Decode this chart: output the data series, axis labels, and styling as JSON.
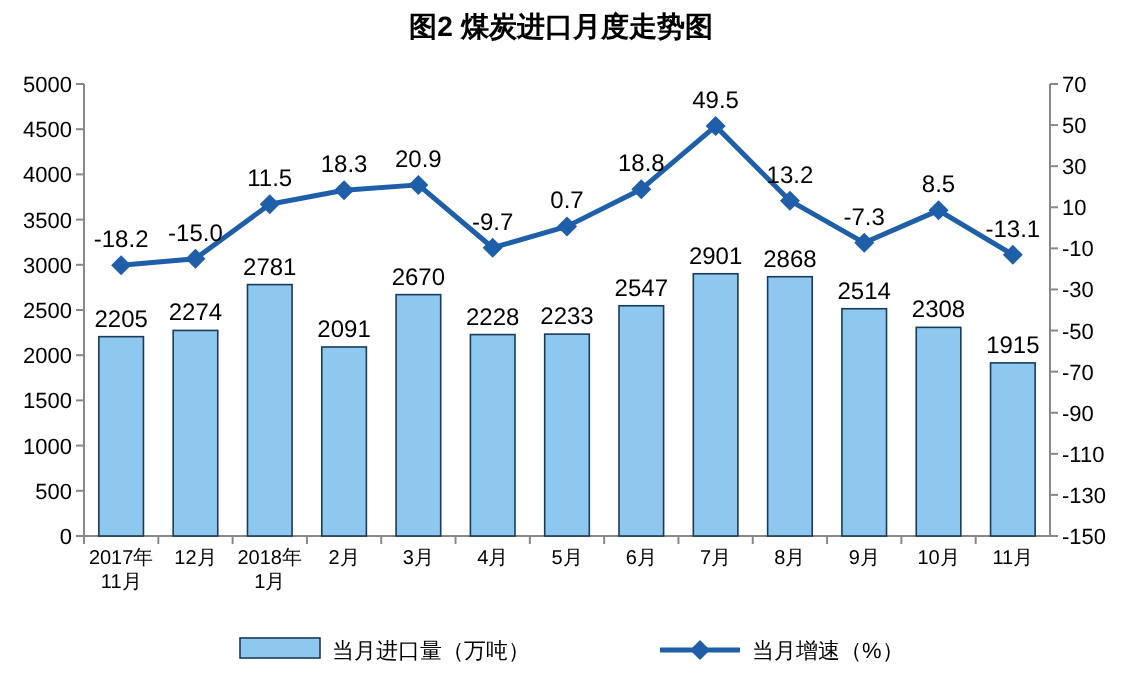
{
  "chart_data": {
    "type": "bar",
    "title": "图2  煤炭进口月度走势图",
    "categories": [
      "2017年\n11月",
      "12月",
      "2018年\n1月",
      "2月",
      "3月",
      "4月",
      "5月",
      "6月",
      "7月",
      "8月",
      "9月",
      "10月",
      "11月"
    ],
    "series": [
      {
        "name": "当月进口量（万吨）",
        "color": "#8ec8ef",
        "values": [
          2205,
          2274,
          2781,
          2091,
          2670,
          2228,
          2233,
          2547,
          2901,
          2868,
          2514,
          2308,
          1915
        ],
        "value_labels": [
          "2205",
          "2274",
          "2781",
          "2091",
          "2670",
          "2228",
          "2233",
          "2547",
          "2901",
          "2868",
          "2514",
          "2308",
          "1915"
        ]
      },
      {
        "name": "当月增速（%）",
        "type": "line",
        "axis": "y2",
        "color": "#1f5ea8",
        "marker": "diamond",
        "values": [
          -18.2,
          -15.0,
          11.5,
          18.3,
          20.9,
          -9.7,
          0.7,
          18.8,
          49.5,
          13.2,
          -7.3,
          8.5,
          -13.1
        ],
        "value_labels": [
          "-18.2",
          "-15.0",
          "11.5",
          "18.3",
          "20.9",
          "-9.7",
          "0.7",
          "18.8",
          "49.5",
          "13.2",
          "-7.3",
          "8.5",
          "-13.1"
        ]
      }
    ],
    "ylim": [
      0,
      5000
    ],
    "yticks": [
      0,
      500,
      1000,
      1500,
      2000,
      2500,
      3000,
      3500,
      4000,
      4500,
      5000
    ],
    "y2lim": [
      -150,
      70
    ],
    "y2ticks": [
      -150,
      -130,
      -110,
      -90,
      -70,
      -50,
      -30,
      -10,
      10,
      30,
      50,
      70
    ],
    "legend": "bottom",
    "grid": false
  }
}
